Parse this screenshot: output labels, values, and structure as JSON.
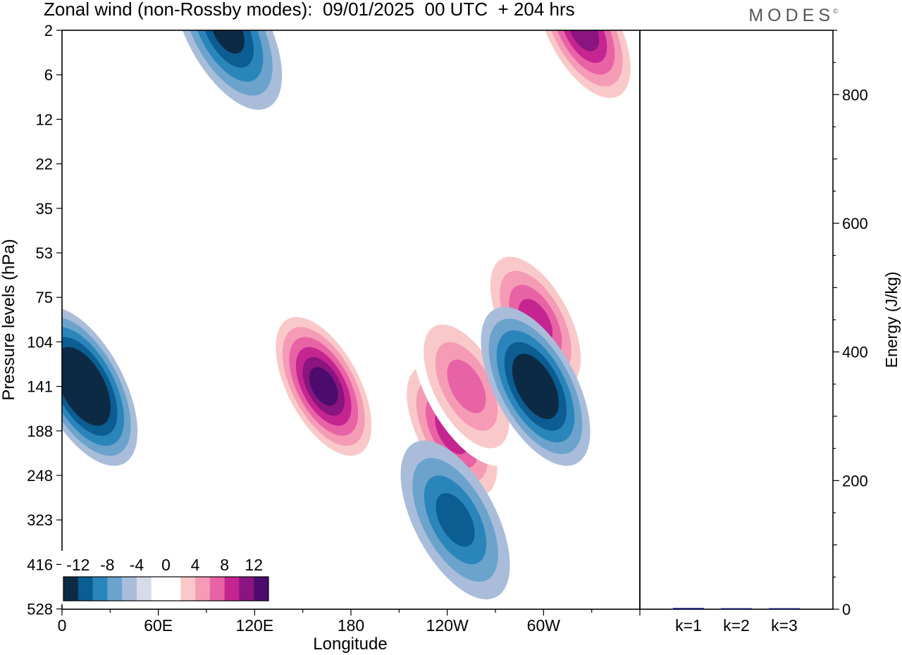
{
  "header": {
    "title": "Zonal wind (non-Rossby modes):  09/01/2025  00 UTC  + 204 hrs",
    "brand": "MODES",
    "brand_mark": "©"
  },
  "colors": {
    "scale": [
      "#0d2a45",
      "#0b5d92",
      "#2a85bb",
      "#6ba3cc",
      "#a9bddb",
      "#d7dae9",
      "#ffffff",
      "#ffffff",
      "#f9c9c9",
      "#f59bb5",
      "#e763a6",
      "#c52590",
      "#8a1480",
      "#4d0c6d"
    ],
    "energy_bar": "#1a1a7a",
    "frame": "#000000"
  },
  "chart_data": [
    {
      "type": "heatmap",
      "title": "Zonal wind (non-Rossby modes):  09/01/2025  00 UTC  + 204 hrs",
      "xlabel": "Longitude",
      "ylabel": "Pressure levels (hPa)",
      "x_ticks": [
        "0",
        "60E",
        "120E",
        "180",
        "120W",
        "60W"
      ],
      "x_range_deg": [
        0,
        360
      ],
      "y_ticks": [
        "2",
        "6",
        "12",
        "22",
        "35",
        "53",
        "75",
        "104",
        "141",
        "188",
        "248",
        "323",
        "416",
        "528"
      ],
      "colorbar": {
        "labels": [
          "-12",
          "-8",
          "-4",
          "0",
          "4",
          "8",
          "12"
        ],
        "levels": [
          -12,
          -10,
          -8,
          -6,
          -4,
          -2,
          0,
          2,
          4,
          6,
          8,
          10,
          12,
          14
        ],
        "placement": "bottom-left inset"
      },
      "features": [
        {
          "type": "positive",
          "center_lon": 163,
          "center_hpa": 141,
          "peak": 14
        },
        {
          "type": "positive",
          "center_lon": 243,
          "center_hpa": 188,
          "peak": 10
        },
        {
          "type": "positive",
          "center_lon": 295,
          "center_hpa": 90,
          "peak": 10
        },
        {
          "type": "positive",
          "center_lon": 325,
          "center_hpa": 2,
          "peak": 12
        },
        {
          "type": "positive",
          "center_lon": 252,
          "center_hpa": 141,
          "peak": 8
        },
        {
          "type": "negative",
          "center_lon": 13,
          "center_hpa": 141,
          "peak": -14
        },
        {
          "type": "negative",
          "center_lon": 295,
          "center_hpa": 141,
          "peak": -12
        },
        {
          "type": "negative",
          "center_lon": 245,
          "center_hpa": 323,
          "peak": -8
        },
        {
          "type": "negative",
          "center_lon": 103,
          "center_hpa": 2,
          "peak": -10
        }
      ]
    },
    {
      "type": "bar",
      "categories": [
        "k=1",
        "k=2",
        "k=3"
      ],
      "values": [
        2,
        1,
        1
      ],
      "ylabel": "Energy (J/kg)",
      "ylim": [
        0,
        900
      ],
      "y_ticks": [
        0,
        200,
        400,
        600,
        800
      ]
    }
  ]
}
